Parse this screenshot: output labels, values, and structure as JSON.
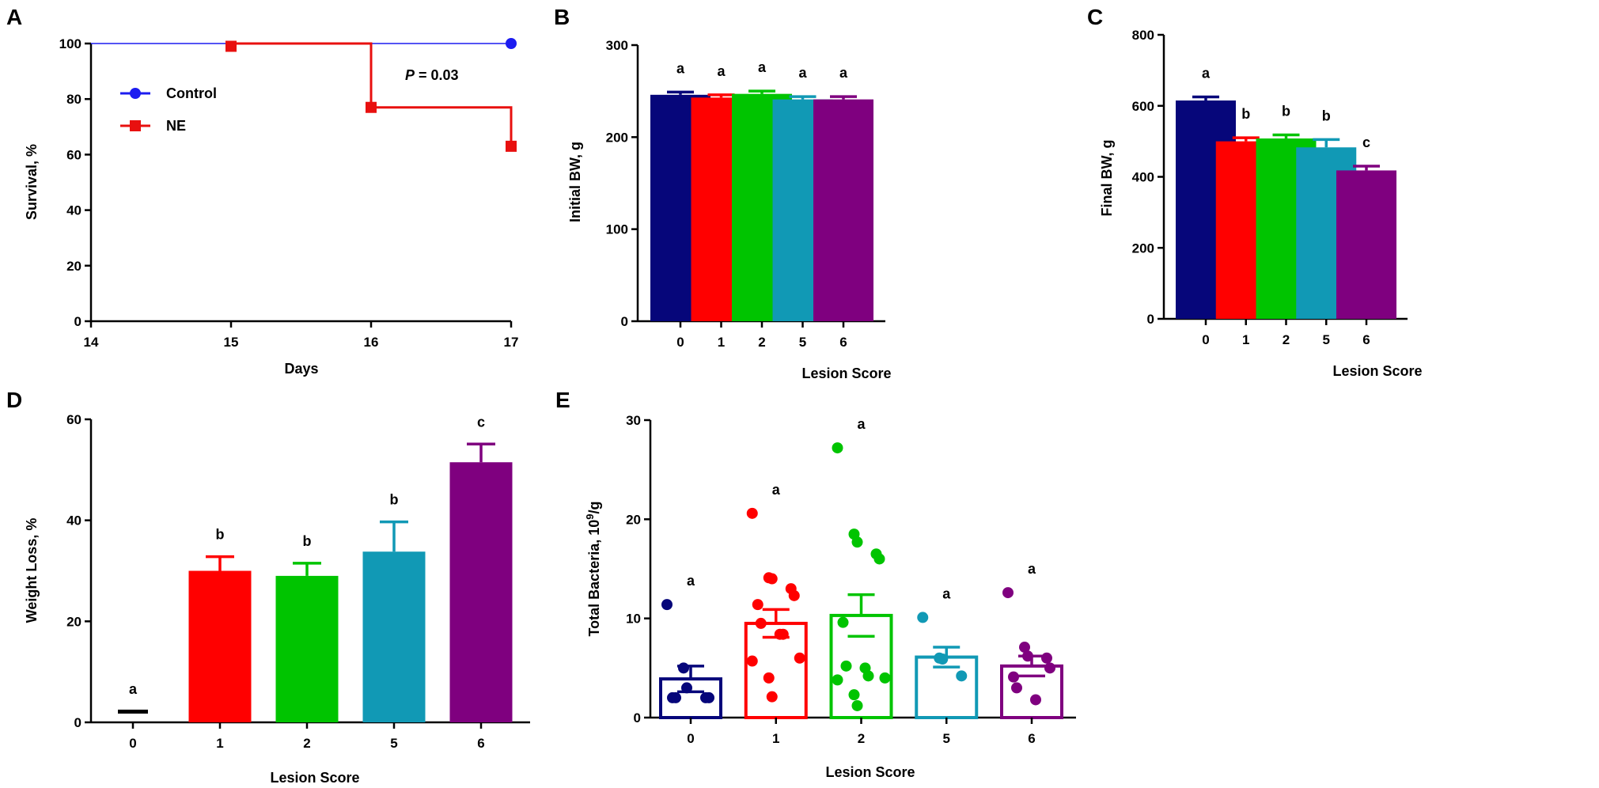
{
  "colors": {
    "0": "#06067a",
    "1": "#ff0000",
    "2": "#00c400",
    "5": "#1199b5",
    "6": "#7f007f",
    "control": "#1c1cf0",
    "ne": "#e8100f"
  },
  "chart_data": [
    {
      "panel": "A",
      "type": "line",
      "title": "",
      "xlabel": "Days",
      "ylabel": "Survival, %",
      "xlim": [
        14,
        17
      ],
      "ylim": [
        0,
        100
      ],
      "x_ticks": [
        "14",
        "15",
        "16",
        "17"
      ],
      "y_ticks": [
        "0",
        "20",
        "40",
        "60",
        "80",
        "100"
      ],
      "annotation": {
        "p": "P",
        "rest": " = 0.03"
      },
      "series": [
        {
          "name": "Control",
          "color_key": "control",
          "marker": "circle",
          "steps": [
            [
              14,
              100
            ],
            [
              17,
              100
            ]
          ],
          "markers": [
            [
              17,
              100
            ]
          ]
        },
        {
          "name": "NE",
          "color_key": "ne",
          "marker": "square",
          "steps": [
            [
              15,
              100
            ],
            [
              16,
              100
            ],
            [
              16,
              77
            ],
            [
              17,
              77
            ],
            [
              17,
              63
            ]
          ],
          "markers": [
            [
              15,
              99
            ],
            [
              16,
              77
            ],
            [
              17,
              63
            ]
          ]
        }
      ]
    },
    {
      "panel": "B",
      "type": "bar",
      "xlabel": "Lesion Score",
      "ylabel": "Initial BW, g",
      "categories": [
        "0",
        "1",
        "2",
        "5",
        "6"
      ],
      "values": [
        246,
        243,
        247,
        241,
        241
      ],
      "errors": [
        3,
        3,
        3,
        3,
        3
      ],
      "letters": [
        "a",
        "a",
        "a",
        "a",
        "a"
      ],
      "ylim": [
        0,
        300
      ],
      "y_ticks": [
        "0",
        "100",
        "200",
        "300"
      ]
    },
    {
      "panel": "C",
      "type": "bar",
      "xlabel": "Lesion Score",
      "ylabel": "Final BW, g",
      "categories": [
        "0",
        "1",
        "2",
        "5",
        "6"
      ],
      "values": [
        615,
        500,
        508,
        483,
        418
      ],
      "errors": [
        10,
        10,
        10,
        22,
        12
      ],
      "letters": [
        "a",
        "b",
        "b",
        "b",
        "c"
      ],
      "ylim": [
        0,
        800
      ],
      "y_ticks": [
        "0",
        "200",
        "400",
        "600",
        "800"
      ]
    },
    {
      "panel": "D",
      "type": "bar",
      "xlabel": "Lesion Score",
      "ylabel": "Weight Loss, %",
      "categories": [
        "0",
        "1",
        "2",
        "5",
        "6"
      ],
      "values": [
        2.2,
        30,
        29,
        33.8,
        51.5
      ],
      "errors": [
        0,
        2.8,
        2.5,
        5.9,
        3.6
      ],
      "letters": [
        "a",
        "b",
        "b",
        "b",
        "c"
      ],
      "ylim": [
        0,
        60
      ],
      "y_ticks": [
        "0",
        "20",
        "40",
        "60"
      ]
    },
    {
      "panel": "E",
      "type": "bar+scatter",
      "xlabel": "Lesion Score",
      "ylabel": {
        "pre": "Total Bacteria, 10",
        "sup": "9",
        "post": "/g"
      },
      "categories": [
        "0",
        "1",
        "2",
        "5",
        "6"
      ],
      "values": [
        3.9,
        9.5,
        10.3,
        6.1,
        5.2
      ],
      "errors": [
        1.3,
        1.4,
        2.1,
        1.0,
        1.0
      ],
      "letters": [
        "a",
        "a",
        "a",
        "a",
        "a"
      ],
      "ylim": [
        0,
        30
      ],
      "y_ticks": [
        "0",
        "10",
        "20",
        "30"
      ],
      "points": [
        [
          11.4,
          5.0,
          3.0,
          2.0,
          2.0,
          2.0,
          2.0
        ],
        [
          20.6,
          14.1,
          14.0,
          13.0,
          12.3,
          11.4,
          9.5,
          8.4,
          8.4,
          6.0,
          5.7,
          4.0,
          2.1
        ],
        [
          27.2,
          18.5,
          17.7,
          16.5,
          16.0,
          9.6,
          5.2,
          5.0,
          4.2,
          4.0,
          3.8,
          2.3,
          1.2
        ],
        [
          10.1,
          6.0,
          5.9,
          4.2
        ],
        [
          12.6,
          7.1,
          6.2,
          6.0,
          5.0,
          4.1,
          3.0,
          1.8
        ]
      ]
    }
  ]
}
